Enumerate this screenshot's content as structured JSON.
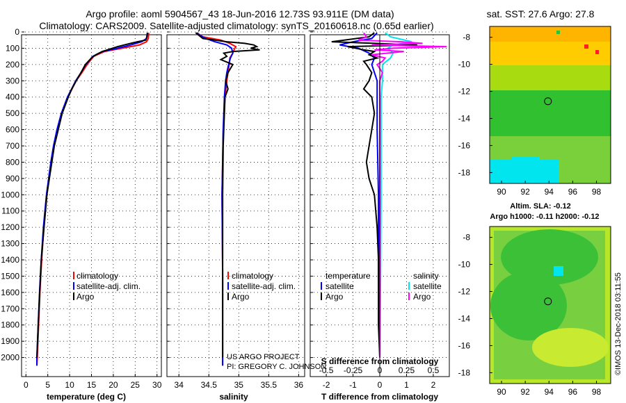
{
  "title_line1": "Argo profile: aoml 5904567_43 18-Jun-2016 12.73S 93.911E (DM data)",
  "title_line2": "Climatology: CARS2009. Satellite-adjusted climatology: synTS_20160618.nc (0.65d earlier)",
  "sst_title": "sat. SST: 27.6 Argo: 27.8",
  "sla_title_1": "Altim. SLA: -0.12",
  "sla_title_2": "Argo h1000: -0.11 h2000: -0.12",
  "watermark": "©IMOS 13-Dec-2018 03:11:55",
  "project_text_1": "US ARGO PROJECT",
  "project_text_2": "PI: GREGORY C. JOHNSON",
  "colors": {
    "climatology": "#ff0000",
    "satellite": "#0000ff",
    "argo": "#000000",
    "sal_satellite": "#00e5ee",
    "sal_argo": "#ff00ff"
  },
  "chart_data": [
    {
      "type": "line",
      "panel": "temperature",
      "xlabel": "temperature (deg C)",
      "ylabel": "",
      "xlim": [
        -1,
        31
      ],
      "ylim": [
        2100,
        0
      ],
      "xticks": [
        "0",
        "5",
        "10",
        "15",
        "20",
        "25",
        "30"
      ],
      "xtick_values": [
        0,
        5,
        10,
        15,
        20,
        25,
        30
      ],
      "yticks": [
        "0",
        "100",
        "200",
        "300",
        "400",
        "500",
        "600",
        "700",
        "800",
        "900",
        "1000",
        "1100",
        "1200",
        "1300",
        "1400",
        "1500",
        "1600",
        "1700",
        "1800",
        "1900",
        "2000"
      ],
      "legend": [
        "climatology",
        "satellite-adj. clim.",
        "Argo"
      ],
      "series": [
        {
          "name": "climatology",
          "depth": [
            5,
            40,
            60,
            80,
            100,
            120,
            150,
            200,
            250,
            300,
            400,
            500,
            600,
            700,
            800,
            1000,
            1200,
            1400,
            1600,
            1800,
            2000,
            2050
          ],
          "values": [
            28.1,
            28.0,
            27.6,
            26.0,
            22.0,
            18.0,
            15.5,
            14.0,
            12.8,
            11.5,
            9.6,
            8.2,
            7.2,
            6.4,
            5.8,
            4.8,
            4.1,
            3.6,
            3.2,
            2.9,
            2.6,
            2.5
          ]
        },
        {
          "name": "satellite-adj. clim.",
          "depth": [
            5,
            40,
            60,
            80,
            100,
            120,
            150,
            200,
            250,
            300,
            400,
            500,
            600,
            700,
            800,
            1000,
            1200,
            1400,
            1600,
            1800,
            2000,
            2050
          ],
          "values": [
            27.8,
            27.6,
            26.5,
            24.0,
            21.0,
            17.5,
            15.3,
            13.7,
            12.6,
            11.4,
            9.5,
            8.1,
            7.1,
            6.3,
            5.7,
            4.7,
            4.0,
            3.5,
            3.1,
            2.8,
            2.5,
            2.5
          ]
        },
        {
          "name": "Argo",
          "depth": [
            5,
            30,
            50,
            60,
            70,
            80,
            90,
            100,
            120,
            140,
            160,
            200,
            250,
            300,
            350,
            400,
            500,
            700,
            1000,
            1400,
            1800,
            2000
          ],
          "values": [
            27.8,
            27.7,
            27.4,
            25.5,
            24.0,
            22.5,
            21.0,
            19.8,
            17.5,
            16.0,
            15.0,
            13.6,
            12.6,
            11.5,
            10.5,
            9.7,
            8.3,
            6.5,
            4.8,
            3.5,
            2.8,
            2.5
          ]
        }
      ]
    },
    {
      "type": "line",
      "panel": "salinity",
      "xlabel": "salinity",
      "xlim": [
        33.8,
        36.1
      ],
      "ylim": [
        2100,
        0
      ],
      "xticks": [
        "34",
        "34.5",
        "35",
        "35.5",
        "36"
      ],
      "xtick_values": [
        34,
        34.5,
        35,
        35.5,
        36
      ],
      "legend": [
        "climatology",
        "satellite-adj. clim.",
        "Argo"
      ],
      "series": [
        {
          "name": "climatology",
          "depth": [
            5,
            30,
            50,
            70,
            90,
            110,
            130,
            160,
            200,
            250,
            300,
            400,
            600,
            1000,
            1500,
            2000,
            2050
          ],
          "values": [
            34.3,
            34.4,
            34.7,
            34.85,
            34.95,
            34.92,
            34.9,
            34.85,
            34.84,
            34.82,
            34.8,
            34.77,
            34.74,
            34.72,
            34.73,
            34.73,
            34.73
          ]
        },
        {
          "name": "satellite-adj. clim.",
          "depth": [
            5,
            20,
            40,
            60,
            80,
            100,
            130,
            160,
            200,
            250,
            300,
            400,
            600,
            1000,
            1500,
            2000,
            2050
          ],
          "values": [
            34.3,
            34.35,
            34.45,
            34.6,
            34.8,
            34.88,
            34.9,
            34.86,
            34.83,
            34.8,
            34.78,
            34.76,
            34.74,
            34.72,
            34.73,
            34.73,
            34.73
          ]
        },
        {
          "name": "Argo",
          "depth": [
            5,
            40,
            60,
            70,
            80,
            90,
            100,
            110,
            120,
            130,
            150,
            170,
            200,
            250,
            300,
            350,
            400,
            500,
            700,
            1000,
            1500,
            2000
          ],
          "values": [
            34.28,
            34.4,
            34.8,
            35.1,
            35.25,
            35.3,
            35.2,
            35.35,
            34.9,
            34.75,
            34.8,
            34.7,
            34.9,
            34.82,
            34.78,
            34.82,
            34.77,
            34.76,
            34.74,
            34.73,
            34.73,
            34.73
          ]
        }
      ]
    },
    {
      "type": "line",
      "panel": "difference",
      "xlabel": "T difference from climatology",
      "xlabel_top": "S difference from climatology",
      "xlim": [
        -2.6,
        2.6
      ],
      "ylim": [
        2100,
        0
      ],
      "xticks": [
        "-2",
        "-1",
        "0",
        "1",
        "2"
      ],
      "xtick_values": [
        -2,
        -1,
        0,
        1,
        2
      ],
      "xticks_top": [
        "-0.5",
        "-0.25",
        "0",
        "0.25",
        "0.5"
      ],
      "xtick_top_values": [
        -2,
        -1,
        0,
        1,
        2
      ],
      "legend_left_title": "temperature",
      "legend_right_title": "salinity",
      "legend_left": [
        "satellite",
        "Argo"
      ],
      "legend_right": [
        "satellite",
        "Argo"
      ],
      "series": [
        {
          "name": "temperature satellite",
          "depth": [
            5,
            40,
            60,
            80,
            100,
            130,
            160,
            200,
            300,
            400,
            600,
            1000,
            1500,
            2000
          ],
          "values": [
            -0.1,
            -0.3,
            -1.0,
            -1.5,
            -0.8,
            -0.4,
            -0.2,
            -0.3,
            -0.1,
            -0.1,
            -0.1,
            -0.05,
            -0.05,
            0.0
          ]
        },
        {
          "name": "temperature Argo",
          "depth": [
            5,
            30,
            60,
            80,
            90,
            100,
            110,
            120,
            140,
            160,
            180,
            200,
            250,
            300,
            350,
            400,
            500,
            600,
            700,
            800,
            900,
            1000,
            1200,
            1400,
            1600,
            1800,
            2000
          ],
          "values": [
            -0.2,
            -0.4,
            -1.8,
            1.4,
            -1.2,
            -0.9,
            -0.6,
            -0.2,
            -0.4,
            -0.1,
            -0.6,
            -0.5,
            -0.3,
            -0.4,
            -0.6,
            -0.3,
            -0.2,
            -0.3,
            -0.4,
            -0.5,
            -0.4,
            -0.2,
            -0.1,
            -0.05,
            -0.05,
            -0.05,
            0.0
          ]
        },
        {
          "name": "salinity satellite",
          "depth": [
            5,
            30,
            60,
            80,
            100,
            130,
            160,
            200,
            300,
            400,
            600,
            1000,
            1500,
            2000
          ],
          "values": [
            0.2,
            0.4,
            1.2,
            0.5,
            0.3,
            0.5,
            0.4,
            0.1,
            0.1,
            0.05,
            0.05,
            0.05,
            0.03,
            0.0
          ]
        },
        {
          "name": "salinity Argo",
          "depth": [
            5,
            30,
            50,
            60,
            70,
            80,
            90,
            100,
            110,
            120,
            140,
            160,
            180,
            200,
            250,
            300,
            400,
            600,
            1000,
            1500,
            2000
          ],
          "values": [
            -0.6,
            -0.5,
            -0.8,
            0.8,
            1.6,
            -0.3,
            2.5,
            0.5,
            -0.2,
            0.9,
            -0.3,
            0.2,
            0.1,
            -0.1,
            0.1,
            0.0,
            0.0,
            0.0,
            0.0,
            0.0,
            0.0
          ]
        }
      ]
    },
    {
      "type": "heatmap",
      "panel": "sst_map",
      "title": "sat. SST: 27.6 Argo: 27.8",
      "xlim": [
        89,
        99.2
      ],
      "ylim": [
        -18.8,
        -7.2
      ],
      "xticks": [
        "90",
        "92",
        "94",
        "96",
        "98"
      ],
      "xtick_values": [
        90,
        92,
        94,
        96,
        98
      ],
      "yticks": [
        "-8",
        "-10",
        "-12",
        "-14",
        "-16",
        "-18"
      ],
      "ytick_values": [
        -8,
        -10,
        -12,
        -14,
        -16,
        -18
      ],
      "float_position": {
        "lon": 93.911,
        "lat": -12.73
      }
    },
    {
      "type": "heatmap",
      "panel": "sla_map",
      "title": "Altim. SLA: -0.12",
      "xlim": [
        89,
        99.2
      ],
      "ylim": [
        -18.8,
        -7.2
      ],
      "xticks": [
        "90",
        "92",
        "94",
        "96",
        "98"
      ],
      "xtick_values": [
        90,
        92,
        94,
        96,
        98
      ],
      "yticks": [
        "-8",
        "-10",
        "-12",
        "-14",
        "-16",
        "-18"
      ],
      "ytick_values": [
        -8,
        -10,
        -12,
        -14,
        -16,
        -18
      ],
      "float_position": {
        "lon": 93.911,
        "lat": -12.73
      }
    }
  ]
}
